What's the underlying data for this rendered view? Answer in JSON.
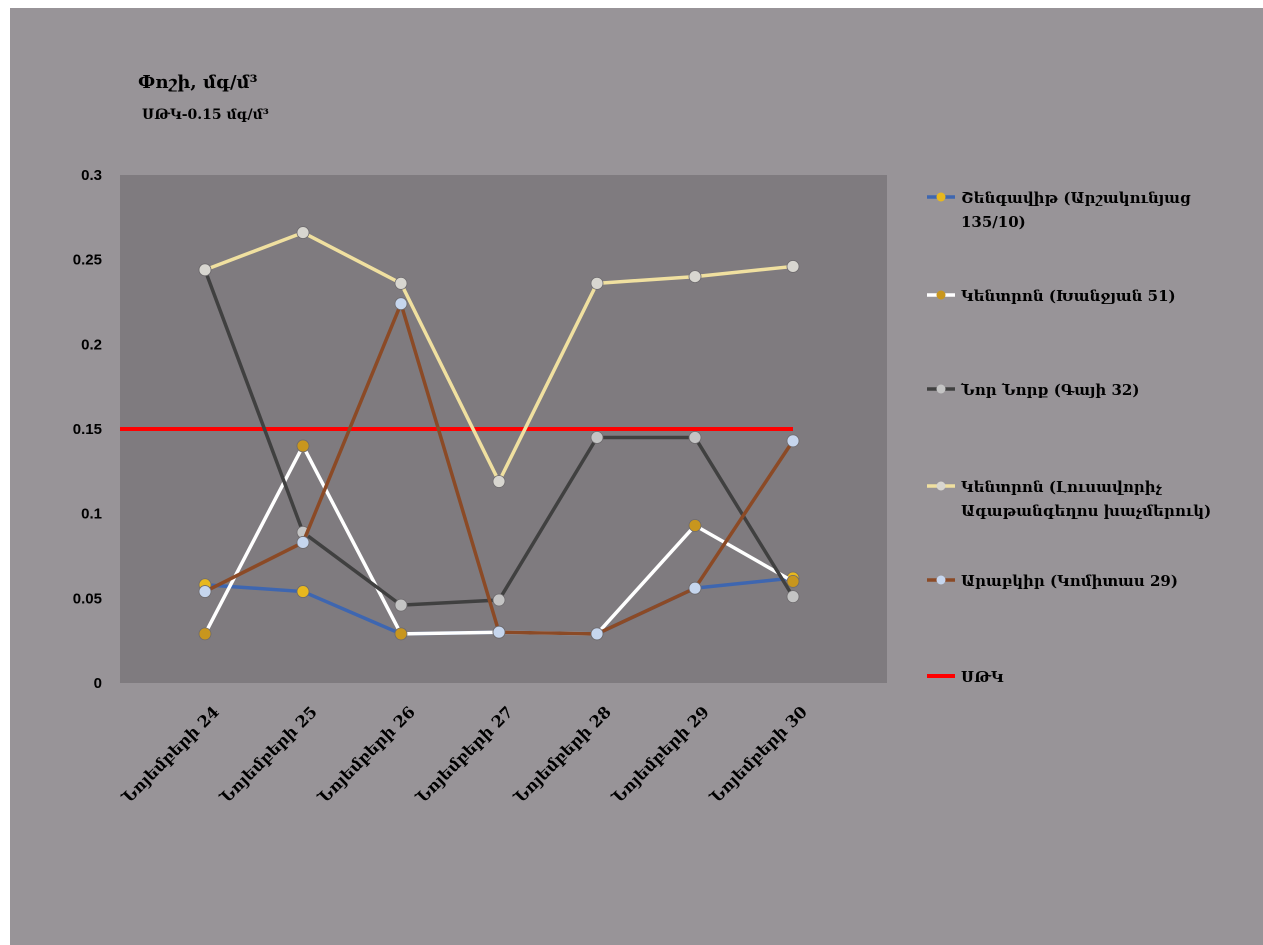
{
  "chart_data": {
    "type": "line",
    "title": "Փոշի, մգ/մ³",
    "subtitle": "ՍԹԿ-0.15 մգ/մ³",
    "categories": [
      "Նոյեմբերի 24",
      "Նոյեմբերի 25",
      "Նոյեմբերի 26",
      "Նոյեմբերի 27",
      "Նոյեմբերի 28",
      "Նոյեմբերի 29",
      "Նոյեմբերի 30"
    ],
    "ylim": [
      0,
      0.3
    ],
    "yticks": [
      "0",
      "0.05",
      "0.1",
      "0.15",
      "0.2",
      "0.25",
      "0.3"
    ],
    "grid": false,
    "legend_position": "right",
    "plot_background": "#7f7b7f",
    "series": [
      {
        "name": "Շենգավիթ (Արշակունյաց 135/10)",
        "color": "#3e66b0",
        "marker": "#e8b81e",
        "values": [
          0.058,
          0.054,
          0.029,
          0.03,
          0.029,
          0.056,
          0.062
        ]
      },
      {
        "name": "Կենտրոն (Խանջյան 51)",
        "color": "#ffffff",
        "marker": "#c8961e",
        "values": [
          0.029,
          0.14,
          0.029,
          0.03,
          0.029,
          0.093,
          0.06
        ]
      },
      {
        "name": "Նոր Նորք (Գայի 32)",
        "color": "#404040",
        "marker": "#c4c4c4",
        "values": [
          0.244,
          0.089,
          0.046,
          0.049,
          0.145,
          0.145,
          0.051
        ]
      },
      {
        "name": "Կենտրոն (Լուսավորիչ Ագաթանգեղոս խաչմերուկ)",
        "color": "#f0e0a0",
        "marker": "#d8d6d0",
        "values": [
          0.244,
          0.266,
          0.236,
          0.119,
          0.236,
          0.24,
          0.246
        ]
      },
      {
        "name": "Արաբկիր (Կոմիտաս 29)",
        "color": "#8b4a26",
        "marker": "#c6d6ee",
        "values": [
          0.054,
          0.083,
          0.224,
          0.03,
          0.029,
          0.056,
          0.143
        ]
      }
    ],
    "threshold": {
      "name": "ՍԹԿ",
      "value": 0.15,
      "color": "#ff0000"
    }
  }
}
